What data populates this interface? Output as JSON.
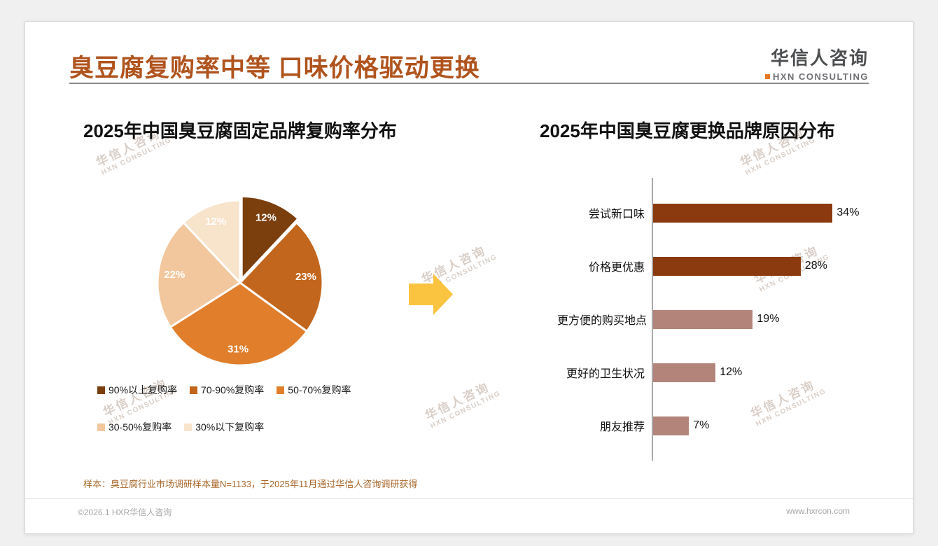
{
  "header": {
    "title": "臭豆腐复购率中等 口味价格驱动更换",
    "logo": {
      "name_cn": "华信人咨询",
      "name_en": "HXN CONSULTING"
    }
  },
  "watermark": {
    "line1": "华信人咨询",
    "line2": "HXN CONSULTING"
  },
  "colors": {
    "accent": "#B0531D",
    "arrow": "#FBC440"
  },
  "chart_data": [
    {
      "type": "pie",
      "title": "2025年中国臭豆腐固定品牌复购率分布",
      "labels": [
        "90%以上复购率",
        "70-90%复购率",
        "50-70%复购率",
        "30-50%复购率",
        "30%以下复购率"
      ],
      "values": [
        12,
        23,
        31,
        22,
        12
      ],
      "value_labels": [
        "12%",
        "23%",
        "31%",
        "22%",
        "12%"
      ],
      "colors": [
        "#7B3E0D",
        "#C2661D",
        "#E07E2C",
        "#F2C79D",
        "#F8E3CB"
      ],
      "legend_position": "bottom"
    },
    {
      "type": "bar",
      "orientation": "horizontal",
      "title": "2025年中国臭豆腐更换品牌原因分布",
      "categories": [
        "尝试新口味",
        "价格更优惠",
        "更方便的购买地点",
        "更好的卫生状况",
        "朋友推荐"
      ],
      "values": [
        34,
        28,
        19,
        12,
        7
      ],
      "value_labels": [
        "34%",
        "28%",
        "19%",
        "12%",
        "7%"
      ],
      "colors": [
        "#8B3A0F",
        "#8B3A0F",
        "#B2847A",
        "#B2847A",
        "#B2847A"
      ],
      "xlim": [
        0,
        36
      ],
      "grid": false
    }
  ],
  "footer": {
    "note": "样本：臭豆腐行业市场调研样本量N=1133，于2025年11月通过华信人咨询调研获得",
    "copyright": "©2026.1 HXR华信人咨询",
    "website": "www.hxrcon.com"
  }
}
